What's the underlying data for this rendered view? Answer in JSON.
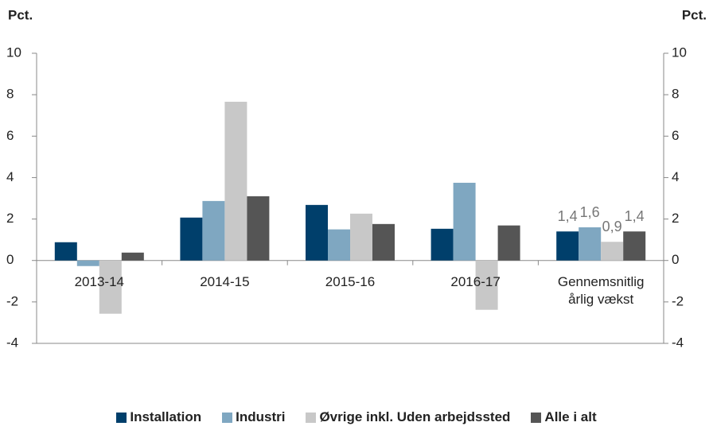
{
  "chart_data": {
    "type": "bar",
    "y_label": "Pct.",
    "y2_label": "Pct.",
    "categories": [
      "2013-14",
      "2014-15",
      "2015-16",
      "2016-17",
      "Gennemsnitlig årlig vækst"
    ],
    "series": [
      {
        "name": "Installation",
        "color": "#003f6b",
        "values": [
          0.88,
          2.07,
          2.68,
          1.53,
          1.4
        ],
        "value_labels": [
          null,
          null,
          null,
          null,
          "1,4"
        ]
      },
      {
        "name": "Industri",
        "color": "#7fa7c1",
        "values": [
          -0.27,
          2.87,
          1.5,
          3.75,
          1.6
        ],
        "value_labels": [
          null,
          null,
          null,
          null,
          "1,6"
        ]
      },
      {
        "name": "Øvrige inkl. Uden arbejdssted",
        "color": "#c8c8c8",
        "values": [
          -2.57,
          7.66,
          2.26,
          -2.38,
          0.9
        ],
        "value_labels": [
          null,
          null,
          null,
          null,
          "0,9"
        ]
      },
      {
        "name": "Alle i alt",
        "color": "#555555",
        "values": [
          0.38,
          3.1,
          1.76,
          1.69,
          1.4
        ],
        "value_labels": [
          null,
          null,
          null,
          null,
          "1,4"
        ]
      }
    ],
    "ylim": [
      -4,
      10
    ],
    "yticks": [
      -4,
      -2,
      0,
      2,
      4,
      6,
      8,
      10
    ],
    "y2lim": [
      -4,
      10
    ],
    "y2ticks": [
      -4,
      -2,
      0,
      2,
      4,
      6,
      8,
      10
    ],
    "grid": false,
    "legend": "bottom"
  }
}
